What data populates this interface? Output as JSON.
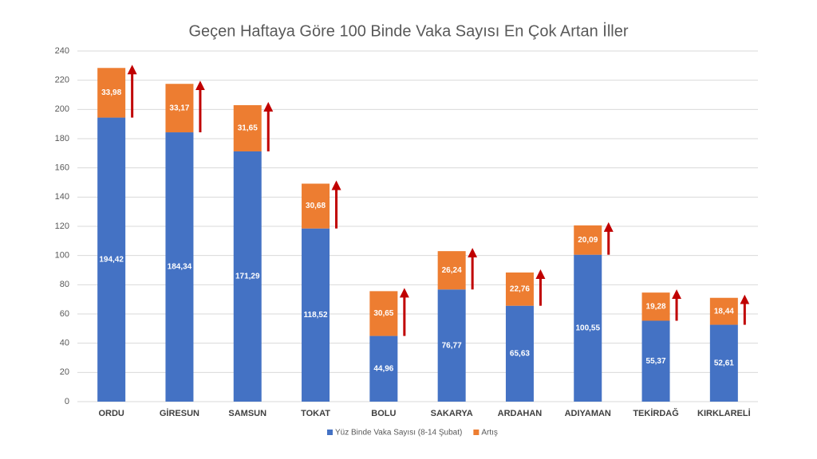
{
  "chart_data": {
    "type": "stacked_bar",
    "title": "Geçen Haftaya Göre 100 Binde Vaka Sayısı En Çok Artan İller",
    "categories": [
      "ORDU",
      "GİRESUN",
      "SAMSUN",
      "TOKAT",
      "BOLU",
      "SAKARYA",
      "ARDAHAN",
      "ADIYAMAN",
      "TEKİRDAĞ",
      "KIRKLARELİ"
    ],
    "series": [
      {
        "name": "Yüz Binde Vaka Sayısı (8-14 Şubat)",
        "color": "#4472c4",
        "values": [
          194.42,
          184.34,
          171.29,
          118.52,
          44.96,
          76.77,
          65.63,
          100.55,
          55.37,
          52.61
        ],
        "value_labels": [
          "194,42",
          "184,34",
          "171,29",
          "118,52",
          "44,96",
          "76,77",
          "65,63",
          "100,55",
          "55,37",
          "52,61"
        ]
      },
      {
        "name": "Artış",
        "color": "#ed7d31",
        "values": [
          33.98,
          33.17,
          31.65,
          30.68,
          30.65,
          26.24,
          22.76,
          20.09,
          19.28,
          18.44
        ],
        "value_labels": [
          "33,98",
          "33,17",
          "31,65",
          "30,68",
          "30,65",
          "26,24",
          "22,76",
          "20,09",
          "19,28",
          "18,44"
        ]
      }
    ],
    "ylim": [
      0,
      240
    ],
    "yticks": [
      0,
      20,
      40,
      60,
      80,
      100,
      120,
      140,
      160,
      180,
      200,
      220,
      240
    ],
    "grid": true
  }
}
